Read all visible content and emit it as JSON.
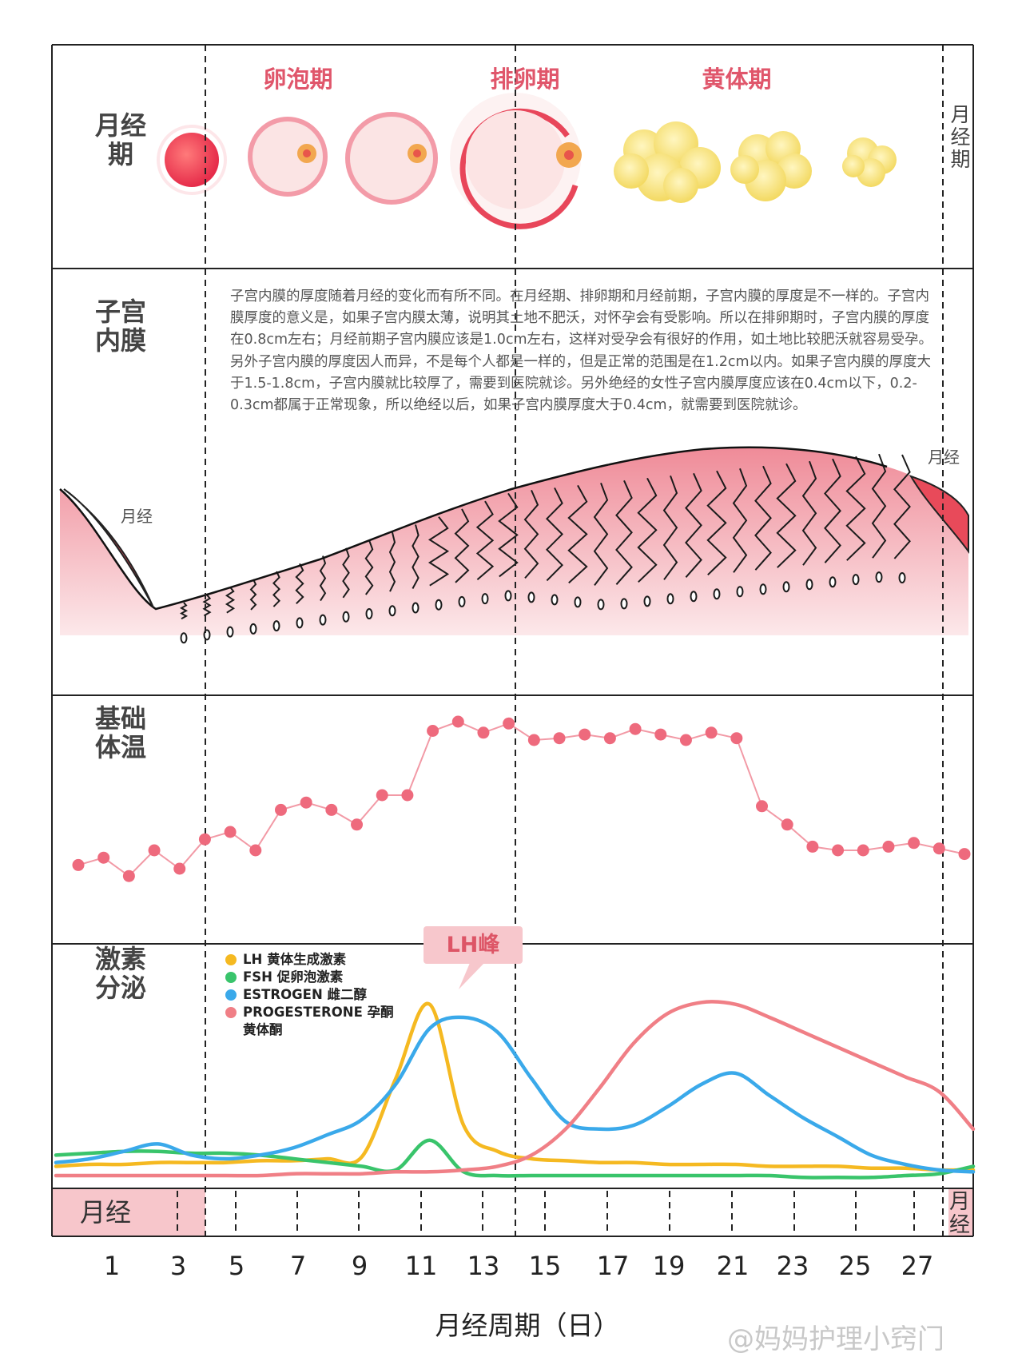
{
  "phases": {
    "menstrual": "月经期",
    "follicular": "卵泡期",
    "ovulation": "排卵期",
    "luteal": "黄体期",
    "menstrual_right": "月经期"
  },
  "rows": {
    "endometrium": "子宫内膜",
    "bbt": "基础体温",
    "hormones": "激素分泌"
  },
  "endometrium_note": "子宫内膜的厚度随着月经的变化而有所不同。在月经期、排卵期和月经前期，子宫内膜的厚度是不一样的。子宫内膜厚度的意义是，如果子宫内膜太薄，说明其土地不肥沃，对怀孕会有受影响。所以在排卵期时，子宫内膜的厚度在0.8cm左右；月经前期子宫内膜应该是1.0cm左右，这样对受孕会有很好的作用，如土地比较肥沃就容易受孕。另外子宫内膜的厚度因人而异，不是每个人都是一样的，但是正常的范围是在1.2cm以内。如果子宫内膜的厚度大于1.5-1.8cm，子宫内膜就比较厚了，需要到医院就诊。另外绝经的女性子宫内膜厚度应该在0.4cm以下，0.2-0.3cm都属于正常现象，所以绝经以后，如果子宫内膜厚度大于0.4cm，就需要到医院就诊。",
  "menses_left_label": "月经",
  "menses_right_label": "月经",
  "legend": [
    {
      "label": "LH 黄体生成激素",
      "color": "#f5b921"
    },
    {
      "label": "FSH 促卵泡激素",
      "color": "#39c46b"
    },
    {
      "label": "ESTROGEN 雌二醇",
      "color": "#3aa9ea"
    },
    {
      "label": "PROGESTERONE 孕酮 黄体酮",
      "color": "#f07f86"
    }
  ],
  "lh_peak_label": "LH峰",
  "menstruation_bar_label": "月经",
  "menstruation_bar_right_label": "月经",
  "day_ticks": [
    "1",
    "3",
    "5",
    "7",
    "9",
    "11",
    "13",
    "15",
    "17",
    "19",
    "21",
    "23",
    "25",
    "27"
  ],
  "axis_title": "月经周期（日）",
  "watermark": "@妈妈护理小窍门",
  "colors": {
    "phase_label": "#e0566b",
    "bbt_point": "#ee6a7d",
    "bbt_line": "#f29aa6",
    "menses_fill": "#f7c6cb",
    "lh": "#f5b921",
    "fsh": "#39c46b",
    "estrogen": "#3aa9ea",
    "progesterone": "#f07f86"
  },
  "chart_data": {
    "type": "line",
    "x_label": "月经周期（日）",
    "bbt": {
      "days": [
        1,
        2,
        3,
        4,
        5,
        6,
        7,
        8,
        9,
        10,
        11,
        12,
        13,
        14,
        15,
        16,
        17,
        18,
        19,
        20,
        21,
        22,
        23,
        24,
        25,
        26,
        27,
        28,
        29,
        30,
        31,
        32,
        33,
        34,
        35,
        36
      ],
      "values": [
        36.32,
        36.36,
        36.26,
        36.4,
        36.3,
        36.46,
        36.5,
        36.4,
        36.62,
        36.66,
        36.62,
        36.54,
        36.7,
        36.7,
        37.05,
        37.1,
        37.04,
        37.09,
        37.0,
        37.01,
        37.03,
        37.01,
        37.06,
        37.03,
        37.0,
        37.04,
        37.01,
        36.64,
        36.54,
        36.42,
        36.4,
        36.4,
        36.42,
        36.44,
        36.41,
        36.38
      ]
    },
    "hormones": {
      "x": [
        1,
        2,
        3,
        4,
        5,
        6,
        7,
        8,
        9,
        10,
        11,
        12,
        13,
        14,
        15,
        16,
        17,
        18,
        19,
        20,
        21,
        22,
        23,
        24,
        25,
        26,
        27,
        28
      ],
      "series": [
        {
          "name": "LH 黄体生成激素",
          "values": [
            8,
            9,
            9,
            10,
            10,
            10,
            11,
            11,
            12,
            13,
            55,
            95,
            30,
            16,
            12,
            11,
            10,
            10,
            9,
            9,
            9,
            8,
            8,
            8,
            7,
            7,
            6,
            6
          ]
        },
        {
          "name": "FSH 促卵泡激素",
          "values": [
            14,
            15,
            16,
            16,
            15,
            15,
            14,
            12,
            10,
            8,
            6,
            22,
            5,
            3,
            3,
            3,
            3,
            3,
            3,
            3,
            3,
            3,
            2,
            2,
            2,
            3,
            4,
            8
          ]
        },
        {
          "name": "ESTROGEN 雌二醇",
          "values": [
            10,
            12,
            16,
            20,
            14,
            12,
            14,
            18,
            25,
            33,
            52,
            82,
            88,
            80,
            55,
            32,
            28,
            30,
            40,
            52,
            58,
            46,
            34,
            24,
            14,
            9,
            6,
            5
          ]
        },
        {
          "name": "PROGESTERONE 孕酮 黄体酮",
          "values": [
            3,
            3,
            3,
            3,
            3,
            3,
            3,
            4,
            4,
            4,
            5,
            5,
            6,
            8,
            14,
            28,
            50,
            74,
            90,
            96,
            95,
            88,
            80,
            72,
            64,
            56,
            48,
            28
          ]
        }
      ]
    }
  }
}
